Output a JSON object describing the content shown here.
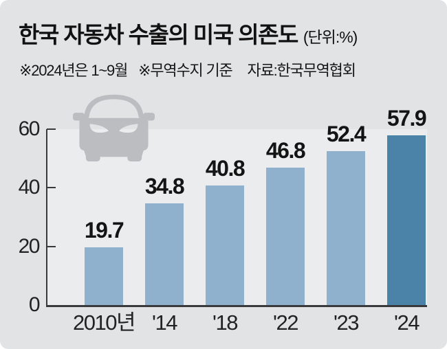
{
  "header": {
    "title": "한국 자동차 수출의 미국 의존도",
    "unit_label": "(단위:%)",
    "note_period": "※2024년은 1~9월",
    "note_basis": "※무역수지 기준",
    "source_label": "자료:한국무역협회"
  },
  "chart_data": {
    "type": "bar",
    "title": "한국 자동차 수출의 미국 의존도",
    "unit": "%",
    "categories": [
      "2010년",
      "'14",
      "'18",
      "'22",
      "'23",
      "'24"
    ],
    "values": [
      19.7,
      34.8,
      40.8,
      46.8,
      52.4,
      57.9
    ],
    "value_labels": [
      "19.7",
      "34.8",
      "40.8",
      "46.8",
      "52.4",
      "57.9"
    ],
    "yticks": [
      0,
      20,
      40,
      60
    ],
    "ylim": [
      0,
      60
    ],
    "xlabel": "",
    "ylabel": "",
    "grid": false,
    "legend": "none",
    "highlight_index": 5,
    "colors": {
      "bar_default": "#8fb1ce",
      "bar_highlight": "#4b83a8",
      "plot_background": "#ebeced",
      "card_background": "#e2e3e5",
      "axis": "#39393b",
      "car_icon": "#bcbdc0"
    },
    "icon": "car-icon"
  }
}
